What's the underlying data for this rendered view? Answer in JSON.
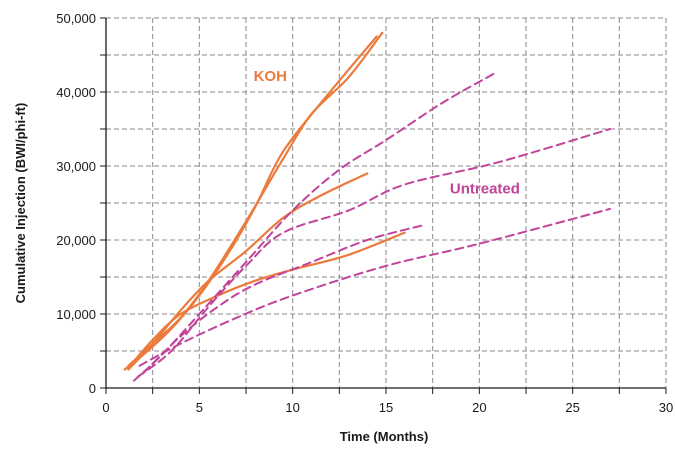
{
  "chart_data": {
    "type": "line",
    "xlabel": "Time (Months)",
    "ylabel": "Cumulative Injection (BWI/phi-ft)",
    "xlim": [
      0,
      30
    ],
    "ylim": [
      0,
      50000
    ],
    "x_ticks": [
      0,
      5,
      10,
      15,
      20,
      25,
      30
    ],
    "x_tick_labels": [
      "0",
      "5",
      "10",
      "15",
      "20",
      "25",
      "30"
    ],
    "y_ticks": [
      0,
      10000,
      20000,
      30000,
      40000,
      50000
    ],
    "y_tick_labels": [
      "0",
      "10,000",
      "20,000",
      "30,000",
      "40,000",
      "50,000"
    ],
    "minor_y_step": 5000,
    "grid": true,
    "colors": {
      "koh": "#ec7a3c",
      "untreated": "#c0449a",
      "grid": "#8a8a8a",
      "axis": "#1a1a1a"
    },
    "group_labels": [
      {
        "text": "KOH",
        "color": "#ec7a3c",
        "x": 8.8,
        "y": 41500
      },
      {
        "text": "Untreated",
        "color": "#c0449a",
        "x": 20.3,
        "y": 26300
      }
    ],
    "series": [
      {
        "group": "KOH",
        "style": "solid",
        "color": "#ec7a3c",
        "points": [
          [
            1.2,
            3000
          ],
          [
            2.5,
            6000
          ],
          [
            4,
            9500
          ],
          [
            5.5,
            14500
          ],
          [
            7.5,
            22500
          ],
          [
            9.5,
            31000
          ],
          [
            11,
            37000
          ],
          [
            13,
            42000
          ],
          [
            14.8,
            48000
          ]
        ]
      },
      {
        "group": "KOH",
        "style": "solid",
        "color": "#ec7a3c",
        "points": [
          [
            1,
            2500
          ],
          [
            2,
            4500
          ],
          [
            3.5,
            8000
          ],
          [
            5,
            12500
          ],
          [
            6.5,
            18000
          ],
          [
            8,
            24500
          ],
          [
            9.5,
            32000
          ],
          [
            12,
            40000
          ],
          [
            14.5,
            47500
          ]
        ]
      },
      {
        "group": "KOH",
        "style": "solid",
        "color": "#ec7a3c",
        "points": [
          [
            1.2,
            2500
          ],
          [
            2.5,
            6000
          ],
          [
            4,
            10500
          ],
          [
            5.5,
            14500
          ],
          [
            7.5,
            18500
          ],
          [
            9.5,
            23000
          ],
          [
            11.5,
            26000
          ],
          [
            14,
            29000
          ]
        ]
      },
      {
        "group": "KOH",
        "style": "solid",
        "color": "#ec7a3c",
        "points": [
          [
            1.3,
            3000
          ],
          [
            2.5,
            6500
          ],
          [
            4,
            10000
          ],
          [
            6,
            12500
          ],
          [
            8,
            14500
          ],
          [
            10,
            16000
          ],
          [
            13,
            18000
          ],
          [
            16,
            21000
          ]
        ]
      },
      {
        "group": "Untreated",
        "style": "dashed",
        "color": "#c0449a",
        "points": [
          [
            1.5,
            1000
          ],
          [
            3,
            4500
          ],
          [
            5,
            10000
          ],
          [
            7.5,
            17000
          ],
          [
            10,
            24000
          ],
          [
            12.5,
            29500
          ],
          [
            15,
            33500
          ],
          [
            18,
            38500
          ],
          [
            20.8,
            42500
          ]
        ]
      },
      {
        "group": "Untreated",
        "style": "dashed",
        "color": "#c0449a",
        "points": [
          [
            1.7,
            1500
          ],
          [
            3.5,
            5000
          ],
          [
            5.5,
            11000
          ],
          [
            7.5,
            16500
          ],
          [
            9.5,
            21000
          ],
          [
            13,
            24000
          ],
          [
            16,
            27500
          ],
          [
            21,
            30500
          ],
          [
            27,
            35000
          ]
        ]
      },
      {
        "group": "Untreated",
        "style": "dashed",
        "color": "#c0449a",
        "points": [
          [
            2,
            2000
          ],
          [
            4,
            7000
          ],
          [
            6,
            11000
          ],
          [
            8,
            14000
          ],
          [
            11,
            17000
          ],
          [
            14,
            20000
          ],
          [
            17,
            22000
          ]
        ]
      },
      {
        "group": "Untreated",
        "style": "dashed",
        "color": "#c0449a",
        "points": [
          [
            1.8,
            3000
          ],
          [
            4,
            6000
          ],
          [
            7,
            9500
          ],
          [
            10,
            12500
          ],
          [
            15,
            16500
          ],
          [
            20,
            19500
          ],
          [
            27,
            24200
          ]
        ]
      }
    ]
  }
}
